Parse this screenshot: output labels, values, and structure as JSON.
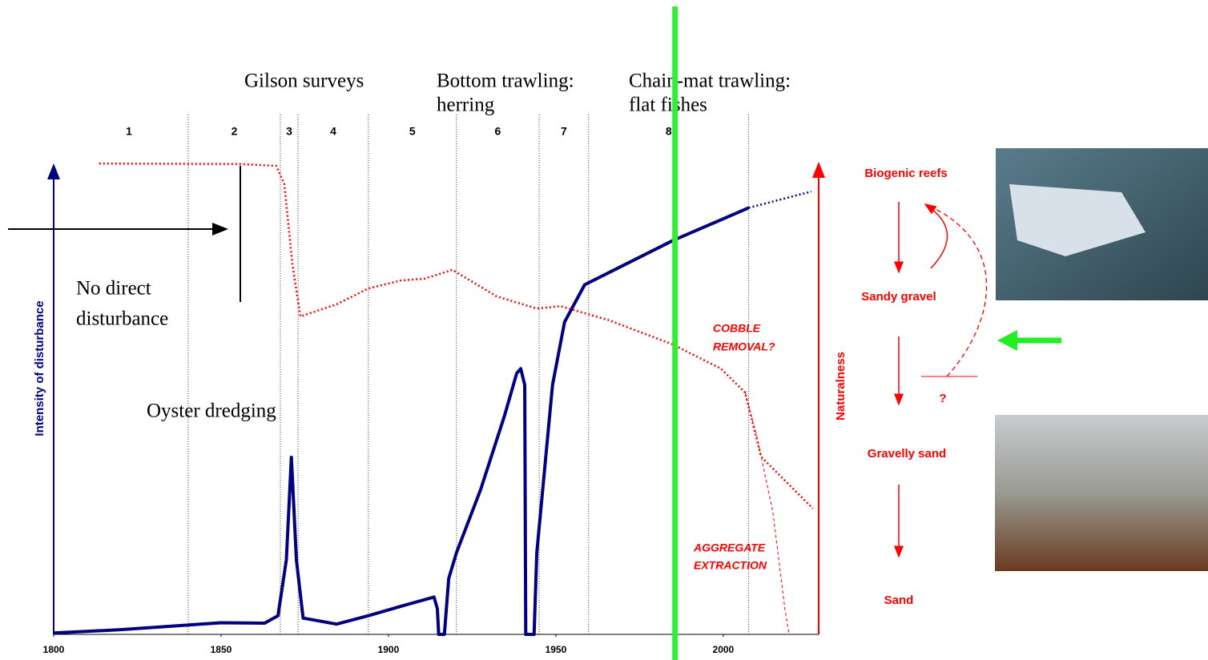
{
  "chart_data": {
    "type": "line",
    "xlim": [
      1800,
      2028.5
    ],
    "xticks": [
      1800,
      1850,
      1900,
      1950,
      2000
    ],
    "ylim": [
      0,
      100
    ],
    "ylabel": "Intensity of disturbance",
    "y2label": "Naturalness",
    "series": [
      {
        "color": "#000080",
        "style": "solid",
        "x": [
          1800,
          1820,
          1840,
          1850,
          1863,
          1867,
          1869.5,
          1871,
          1872.5,
          1874.5,
          1884.5,
          1894,
          1903.6,
          1913.6,
          1914.6,
          1915,
          1916.7,
          1918,
          1920.3,
          1927.5,
          1934.7,
          1938.3,
          1939.5,
          1940.7,
          1941,
          1943.5,
          1944.3,
          1949,
          1952.6,
          1958.6,
          1985,
          2007.6
        ],
        "values": [
          0.3,
          1,
          2,
          2.5,
          2.4,
          4,
          16,
          38,
          16,
          3.5,
          2.2,
          4,
          6,
          8,
          5.5,
          0,
          0,
          12,
          17.5,
          31,
          47,
          56,
          57,
          53.5,
          0,
          0,
          17.5,
          53.5,
          67,
          75,
          84.5,
          91.5
        ]
      },
      {
        "color": "#000080",
        "style": "dotted",
        "x": [
          2007.6,
          2026.3
        ],
        "values": [
          91.5,
          95
        ]
      },
      {
        "color": "#ff0000",
        "style": "dotted",
        "x": [
          1813.6,
          1855.7,
          1866.5,
          1868.9,
          1871.3,
          1873.7,
          1884.5,
          1894,
          1903.6,
          1910.8,
          1919.1,
          1932.3,
          1944.3,
          1951.4,
          1965.8,
          1984.9,
          1999.3,
          2006.5,
          2011.3,
          2026.8
        ],
        "values": [
          101,
          100.9,
          100.5,
          96.6,
          79.4,
          68.2,
          70.8,
          74.2,
          75.9,
          76.3,
          78.2,
          72.5,
          69.9,
          70.4,
          67.4,
          62.2,
          57,
          51.9,
          38.1,
          27
        ]
      },
      {
        "color": "#ff0000",
        "style": "dashed",
        "x": [
          2006.5,
          2010,
          2014.8,
          2018.4,
          2019.6
        ],
        "values": [
          51.9,
          42.6,
          26.3,
          5.5,
          0.3
        ]
      }
    ],
    "periods": {
      "boundaries": [
        1840.2,
        1867.7,
        1873,
        1894,
        1920.3,
        1945,
        1959.8,
        2007.6
      ],
      "labels": [
        "1",
        "2",
        "3",
        "4",
        "5",
        "6",
        "7",
        "8"
      ]
    },
    "highlight_x": 1985.6,
    "highlight_color": "#33ee33",
    "annotations": [
      "Gilson surveys",
      "Bottom trawling:",
      "herring",
      "Chain-mat trawling:",
      "flat fishes",
      "No direct",
      "disturbance",
      "Oyster dredging",
      "COBBLE",
      "REMOVAL?",
      "AGGREGATE",
      "EXTRACTION"
    ]
  },
  "sequence": [
    "Biogenic reefs",
    "Sandy gravel",
    "Gravelly sand",
    "Sand"
  ],
  "uncertain_mark": "?"
}
